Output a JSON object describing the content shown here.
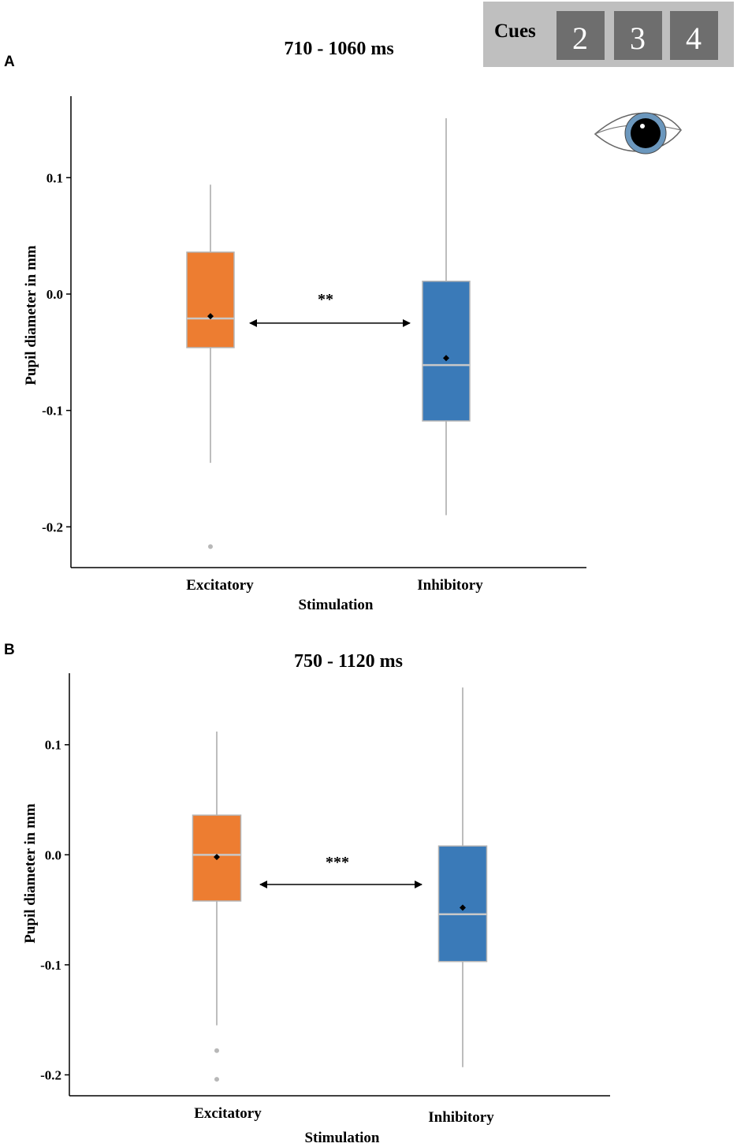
{
  "cues_widget": {
    "label": "Cues",
    "numbers": [
      "2",
      "3",
      "4"
    ],
    "bg_color": "#bfbfbf",
    "box_color": "#6e6e6e"
  },
  "eye_icon": "eye-icon",
  "chart_data": [
    {
      "panel": "A",
      "type": "box",
      "title": "710 - 1060 ms",
      "xlabel": "Stimulation",
      "ylabel": "Pupil diameter in mm",
      "ylim": [
        -0.235,
        0.17
      ],
      "yticks": [
        0.1,
        0.0,
        -0.1,
        -0.2
      ],
      "ytick_labels": [
        "0.1",
        "0.0",
        "-0.1",
        "-0.2"
      ],
      "categories": [
        "Excitatory",
        "Inhibitory"
      ],
      "boxes": [
        {
          "name": "Excitatory",
          "whisker_low": -0.145,
          "q1": -0.046,
          "median": -0.021,
          "q3": 0.036,
          "whisker_high": 0.094,
          "mean": -0.019,
          "outliers": [
            -0.217
          ],
          "color": "#ed7d31"
        },
        {
          "name": "Inhibitory",
          "whisker_low": -0.19,
          "q1": -0.109,
          "median": -0.061,
          "q3": 0.011,
          "whisker_high": 0.151,
          "mean": -0.055,
          "outliers": [],
          "color": "#3a7ab8"
        }
      ],
      "significance": "**",
      "significance_y": -0.025
    },
    {
      "panel": "B",
      "type": "box",
      "title": "750 - 1120 ms",
      "xlabel": "Stimulation",
      "ylabel": "Pupil diameter in mm",
      "ylim": [
        -0.219,
        0.165
      ],
      "yticks": [
        0.1,
        0.0,
        -0.1,
        -0.2
      ],
      "ytick_labels": [
        "0.1",
        "0.0",
        "-0.1",
        "-0.2"
      ],
      "categories": [
        "Excitatory",
        "Inhibitory"
      ],
      "boxes": [
        {
          "name": "Excitatory",
          "whisker_low": -0.155,
          "q1": -0.042,
          "median": 0.0,
          "q3": 0.036,
          "whisker_high": 0.112,
          "mean": -0.002,
          "outliers": [
            -0.178,
            -0.204
          ],
          "color": "#ed7d31"
        },
        {
          "name": "Inhibitory",
          "whisker_low": -0.193,
          "q1": -0.097,
          "median": -0.054,
          "q3": 0.008,
          "whisker_high": 0.152,
          "mean": -0.048,
          "outliers": [],
          "color": "#3a7ab8"
        }
      ],
      "significance": "***",
      "significance_y": -0.027
    }
  ]
}
